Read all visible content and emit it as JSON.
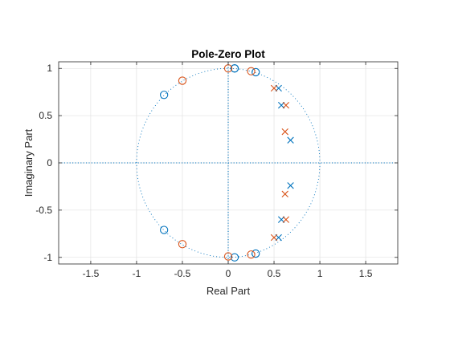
{
  "chart_data": {
    "type": "scatter",
    "title": "Pole-Zero Plot",
    "xlabel": "Real Part",
    "ylabel": "Imaginary Part",
    "xlim": [
      -1.85,
      1.85
    ],
    "ylim": [
      -1.07,
      1.07
    ],
    "xticks": [
      -1.5,
      -1,
      -0.5,
      0,
      0.5,
      1,
      1.5
    ],
    "xtick_labels": [
      "-1.5",
      "-1",
      "-0.5",
      "0",
      "0.5",
      "1",
      "1.5"
    ],
    "yticks": [
      -1,
      -0.5,
      0,
      0.5,
      1
    ],
    "ytick_labels": [
      "-1",
      "-0.5",
      "0",
      "0.5",
      "1"
    ],
    "grid": true,
    "unit_circle": true,
    "colors": {
      "blue": "#0072BD",
      "orange": "#D95319",
      "grid": "#dcdcdc",
      "axis": "#262626"
    },
    "series": [
      {
        "marker": "o",
        "color": "#0072BD",
        "points": [
          [
            0.07,
            1.0
          ],
          [
            0.3,
            0.96
          ],
          [
            -0.7,
            0.72
          ],
          [
            -0.7,
            -0.71
          ],
          [
            0.07,
            -1.0
          ],
          [
            0.3,
            -0.96
          ],
          [
            0.07,
            1.0
          ]
        ]
      },
      {
        "marker": "o",
        "color": "#D95319",
        "points": [
          [
            0.0,
            1.0
          ],
          [
            0.25,
            0.97
          ],
          [
            -0.5,
            0.87
          ],
          [
            -0.5,
            -0.86
          ],
          [
            0.0,
            -0.99
          ],
          [
            0.25,
            -0.97
          ]
        ]
      },
      {
        "marker": "x",
        "color": "#0072BD",
        "points": [
          [
            0.55,
            0.79
          ],
          [
            0.58,
            0.61
          ],
          [
            0.68,
            0.24
          ],
          [
            0.68,
            -0.24
          ],
          [
            0.58,
            -0.6
          ],
          [
            0.55,
            -0.79
          ]
        ]
      },
      {
        "marker": "x",
        "color": "#D95319",
        "points": [
          [
            0.5,
            0.79
          ],
          [
            0.63,
            0.61
          ],
          [
            0.62,
            0.33
          ],
          [
            0.62,
            -0.33
          ],
          [
            0.63,
            -0.6
          ],
          [
            0.5,
            -0.79
          ]
        ]
      }
    ]
  }
}
